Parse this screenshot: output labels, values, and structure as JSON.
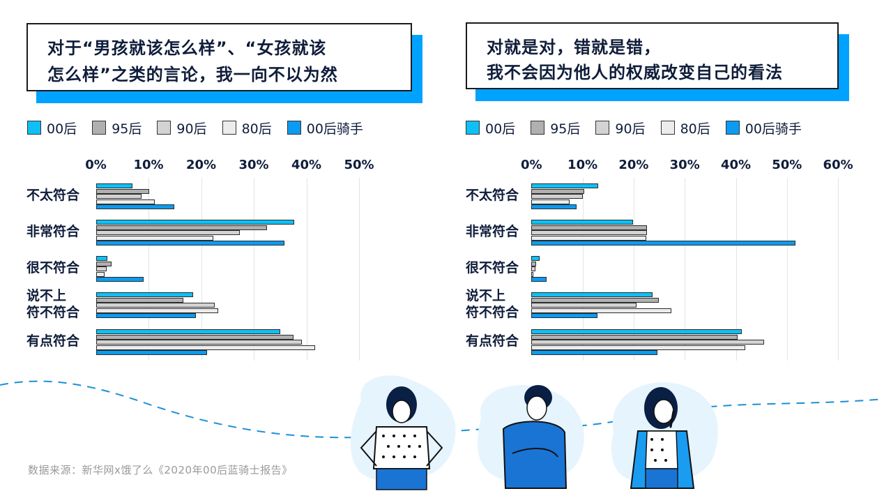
{
  "series_colors": {
    "00后": "#0ec0f5",
    "95后": "#b0b0b0",
    "90后": "#d3d3d3",
    "80后": "#ececec",
    "00后骑手": "#0b9bf0"
  },
  "accent_color": "#00a2ff",
  "left_panel": {
    "title_line1": "对于“男孩就该怎么样”、“女孩就该",
    "title_line2": "怎么样”之类的言论，我一向不以为然",
    "legend": [
      "00后",
      "95后",
      "90后",
      "80后",
      "00后骑手"
    ],
    "axis_ticks": [
      "0%",
      "10%",
      "20%",
      "30%",
      "40%",
      "50%"
    ],
    "categories": [
      "不太符合",
      "非常符合",
      "很不符合",
      "说不上\n符不符合",
      "有点符合"
    ],
    "category_lines": [
      [
        "不太符合"
      ],
      [
        "非常符合"
      ],
      [
        "很不符合"
      ],
      [
        "说不上",
        "符不符合"
      ],
      [
        "有点符合"
      ]
    ]
  },
  "right_panel": {
    "title_line1": "对就是对，错就是错，",
    "title_line2": "我不会因为他人的权威改变自己的看法",
    "legend": [
      "00后",
      "95后",
      "90后",
      "80后",
      "00后骑手"
    ],
    "axis_ticks": [
      "0%",
      "10%",
      "20%",
      "30%",
      "40%",
      "50%",
      "60%"
    ],
    "categories": [
      "不太符合",
      "非常符合",
      "很不符合",
      "说不上\n符不符合",
      "有点符合"
    ],
    "category_lines": [
      [
        "不太符合"
      ],
      [
        "非常符合"
      ],
      [
        "很不符合"
      ],
      [
        "说不上",
        "符不符合"
      ],
      [
        "有点符合"
      ]
    ]
  },
  "footer": {
    "source": "数据来源：新华网x饿了么《2020年00后蓝骑士报告》"
  },
  "chart_data": [
    {
      "type": "bar",
      "orientation": "horizontal",
      "title": "对于“男孩就该怎么样”、“女孩就该怎么样”之类的言论，我一向不以为然",
      "categories": [
        "不太符合",
        "非常符合",
        "很不符合",
        "说不上符不符合",
        "有点符合"
      ],
      "series": [
        {
          "name": "00后",
          "values": [
            7,
            37.7,
            2.2,
            18.5,
            35.1
          ]
        },
        {
          "name": "95后",
          "values": [
            10.2,
            32.6,
            3.1,
            16.7,
            37.6
          ]
        },
        {
          "name": "90后",
          "values": [
            8.7,
            27.4,
            2.1,
            22.6,
            39.2
          ]
        },
        {
          "name": "80后",
          "values": [
            11.3,
            22.4,
            1.7,
            23.3,
            41.8
          ]
        },
        {
          "name": "00后骑手",
          "values": [
            15.0,
            35.9,
            9.1,
            19.1,
            21.2
          ]
        }
      ],
      "xlabel": "",
      "ylabel": "",
      "xlim": [
        0,
        50
      ],
      "x_ticks": [
        "0%",
        "10%",
        "20%",
        "30%",
        "40%",
        "50%"
      ],
      "grid": true,
      "legend_position": "top"
    },
    {
      "type": "bar",
      "orientation": "horizontal",
      "title": "对就是对，错就是错，我不会因为他人的权威改变自己的看法",
      "categories": [
        "不太符合",
        "非常符合",
        "很不符合",
        "说不上符不符合",
        "有点符合"
      ],
      "series": [
        {
          "name": "00后",
          "values": [
            13.1,
            20.0,
            1.7,
            23.8,
            41.2
          ]
        },
        {
          "name": "95后",
          "values": [
            10.4,
            22.7,
            1.0,
            25.0,
            40.4
          ]
        },
        {
          "name": "90后",
          "values": [
            10.2,
            22.7,
            0.8,
            20.6,
            45.6
          ]
        },
        {
          "name": "80后",
          "values": [
            7.6,
            22.5,
            0.4,
            27.4,
            41.9
          ]
        },
        {
          "name": "00后骑手",
          "values": [
            8.9,
            51.8,
            3.0,
            13.0,
            24.8
          ]
        }
      ],
      "xlabel": "",
      "ylabel": "",
      "xlim": [
        0,
        60
      ],
      "x_ticks": [
        "0%",
        "10%",
        "20%",
        "30%",
        "40%",
        "50%",
        "60%"
      ],
      "grid": true,
      "legend_position": "top"
    }
  ]
}
